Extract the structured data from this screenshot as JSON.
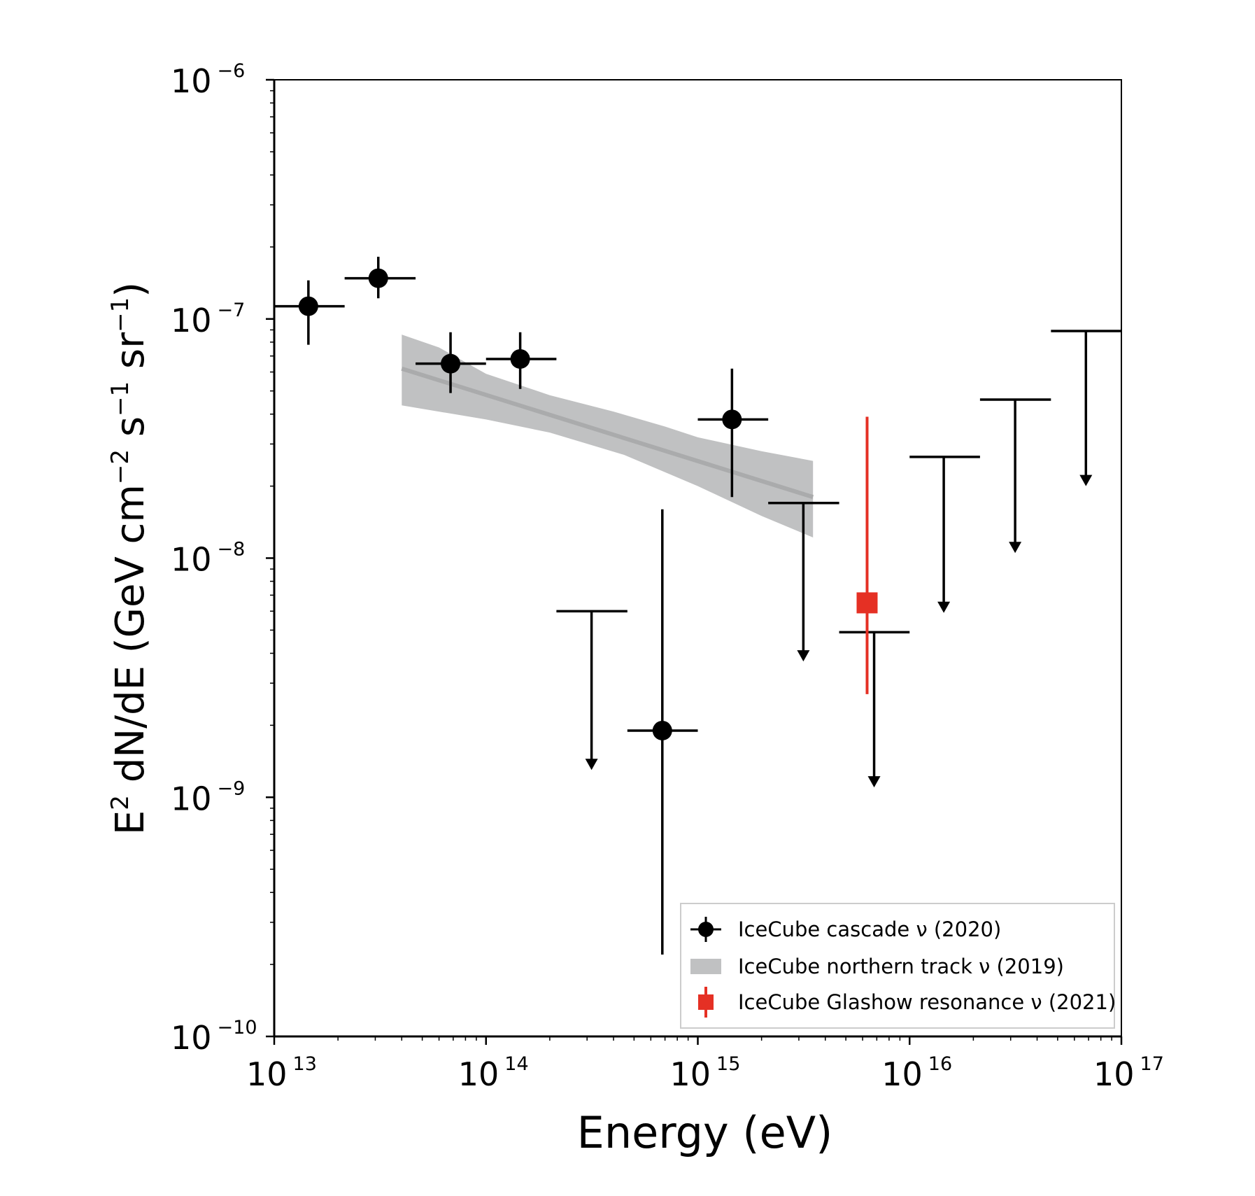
{
  "chart_data": {
    "type": "scatter",
    "xlabel": "Energy (eV)",
    "ylabel": {
      "pre": "E",
      "sup": "2",
      "mid": " dN/dE (GeV cm",
      "sup2": "−2",
      "mid2": " s",
      "sup3": "−1",
      "mid3": " sr",
      "sup4": "−1",
      "post": ")"
    },
    "x_scale": "log",
    "y_scale": "log",
    "xlim": [
      10000000000000.0,
      1e+17
    ],
    "ylim": [
      1e-10,
      1e-06
    ],
    "x_ticks": [
      {
        "value": 10000000000000.0,
        "base": "10",
        "exp": "13"
      },
      {
        "value": 100000000000000.0,
        "base": "10",
        "exp": "14"
      },
      {
        "value": 1000000000000000.0,
        "base": "10",
        "exp": "15"
      },
      {
        "value": 1e+16,
        "base": "10",
        "exp": "16"
      },
      {
        "value": 1e+17,
        "base": "10",
        "exp": "17"
      }
    ],
    "y_ticks": [
      {
        "value": 1e-06,
        "base": "10",
        "exp": "−6"
      },
      {
        "value": 1e-07,
        "base": "10",
        "exp": "−7"
      },
      {
        "value": 1e-08,
        "base": "10",
        "exp": "−8"
      },
      {
        "value": 1e-09,
        "base": "10",
        "exp": "−9"
      },
      {
        "value": 1e-10,
        "base": "10",
        "exp": "−10"
      }
    ],
    "legend_position": "lower-right",
    "series": [
      {
        "name": "IceCube cascade ν (2020)",
        "color": "#000000",
        "marker": "circle",
        "points": [
          {
            "x": 14500000000000.0,
            "y": 1.13e-07,
            "x_lo": 10000000000000.0,
            "x_hi": 21500000000000.0,
            "y_lo": 7.8e-08,
            "y_hi": 1.45e-07
          },
          {
            "x": 31000000000000.0,
            "y": 1.48e-07,
            "x_lo": 21500000000000.0,
            "x_hi": 46500000000000.0,
            "y_lo": 1.22e-07,
            "y_hi": 1.82e-07
          },
          {
            "x": 68000000000000.0,
            "y": 6.5e-08,
            "x_lo": 46500000000000.0,
            "x_hi": 100000000000000.0,
            "y_lo": 4.9e-08,
            "y_hi": 8.8e-08
          },
          {
            "x": 145000000000000.0,
            "y": 6.8e-08,
            "x_lo": 100000000000000.0,
            "x_hi": 215000000000000.0,
            "y_lo": 5.1e-08,
            "y_hi": 8.8e-08
          },
          {
            "x": 680000000000000.0,
            "y": 1.9e-09,
            "x_lo": 465000000000000.0,
            "x_hi": 1000000000000000.0,
            "y_lo": 2.2e-10,
            "y_hi": 1.6e-08
          },
          {
            "x": 1450000000000000.0,
            "y": 3.8e-08,
            "x_lo": 1000000000000000.0,
            "x_hi": 2150000000000000.0,
            "y_lo": 1.8e-08,
            "y_hi": 6.2e-08
          }
        ],
        "upper_limits": [
          {
            "y": 6e-09,
            "x_lo": 215000000000000.0,
            "x_hi": 465000000000000.0,
            "arrow_x": 315000000000000.0,
            "arrow_to": 1.3e-09
          },
          {
            "y": 1.7e-08,
            "x_lo": 2150000000000000.0,
            "x_hi": 4650000000000000.0,
            "arrow_x": 3150000000000000.0,
            "arrow_to": 3.7e-09
          },
          {
            "y": 4.9e-09,
            "x_lo": 4650000000000000.0,
            "x_hi": 1e+16,
            "arrow_x": 6800000000000000.0,
            "arrow_to": 1.1e-09
          },
          {
            "y": 2.65e-08,
            "x_lo": 1e+16,
            "x_hi": 2.15e+16,
            "arrow_x": 1.45e+16,
            "arrow_to": 5.9e-09
          },
          {
            "y": 4.6e-08,
            "x_lo": 2.15e+16,
            "x_hi": 4.65e+16,
            "arrow_x": 3.15e+16,
            "arrow_to": 1.05e-08
          },
          {
            "y": 8.9e-08,
            "x_lo": 4.65e+16,
            "x_hi": 1e+17,
            "arrow_x": 6.8e+16,
            "arrow_to": 2e-08
          }
        ]
      },
      {
        "name": "IceCube northern track ν (2019)",
        "color": "#c0c1c2",
        "line_color": "#aaabac",
        "type": "band",
        "band_upper": [
          [
            40000000000000.0,
            8.6e-08
          ],
          [
            60000000000000.0,
            7.6e-08
          ],
          [
            100000000000000.0,
            5.9e-08
          ],
          [
            200000000000000.0,
            4.8e-08
          ],
          [
            400000000000000.0,
            4.1e-08
          ],
          [
            700000000000000.0,
            3.55e-08
          ],
          [
            1000000000000000.0,
            3.2e-08
          ],
          [
            2000000000000000.0,
            2.8e-08
          ],
          [
            3500000000000000.0,
            2.55e-08
          ]
        ],
        "band_lower": [
          [
            40000000000000.0,
            4.35e-08
          ],
          [
            100000000000000.0,
            3.8e-08
          ],
          [
            200000000000000.0,
            3.35e-08
          ],
          [
            450000000000000.0,
            2.7e-08
          ],
          [
            1000000000000000.0,
            2e-08
          ],
          [
            2000000000000000.0,
            1.5e-08
          ],
          [
            3500000000000000.0,
            1.22e-08
          ]
        ],
        "central": [
          [
            40000000000000.0,
            6.2e-08
          ],
          [
            3500000000000000.0,
            1.8e-08
          ]
        ]
      },
      {
        "name": "IceCube Glashow resonance ν (2021)",
        "color": "#e53024",
        "marker": "square",
        "points": [
          {
            "x": 6300000000000000.0,
            "y": 6.5e-09,
            "y_lo": 2.7e-09,
            "y_hi": 3.9e-08
          }
        ]
      }
    ]
  }
}
